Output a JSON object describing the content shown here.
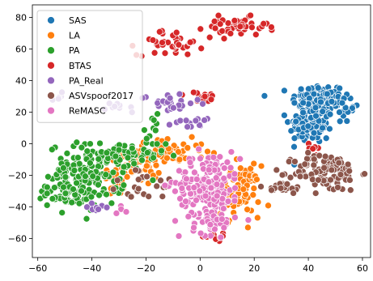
{
  "chart_data": {
    "type": "scatter",
    "title": "",
    "xlabel": "",
    "ylabel": "",
    "xlim": [
      -62,
      63
    ],
    "ylim": [
      -72,
      88
    ],
    "x_ticks": [
      -60,
      -40,
      -20,
      0,
      20,
      40,
      60
    ],
    "y_ticks": [
      -60,
      -40,
      -20,
      0,
      20,
      40,
      60,
      80
    ],
    "x_tick_labels": [
      "−60",
      "−40",
      "−20",
      "0",
      "20",
      "40",
      "60"
    ],
    "y_tick_labels": [
      "−60",
      "−40",
      "−20",
      "0",
      "20",
      "40",
      "60",
      "80"
    ],
    "grid": false,
    "legend_position": "top-left",
    "series": [
      {
        "name": "SAS",
        "color": "#1f77b4",
        "clusters": [
          {
            "cx": 44,
            "cy": 28,
            "sx": 5,
            "sy": 5,
            "n": 120
          },
          {
            "cx": 41,
            "cy": 12,
            "sx": 4,
            "sy": 6,
            "n": 110
          },
          {
            "cx": 53,
            "cy": 22,
            "sx": 2,
            "sy": 4,
            "n": 20
          }
        ]
      },
      {
        "name": "LA",
        "color": "#ff7f0e",
        "clusters": [
          {
            "cx": -14,
            "cy": -5,
            "sx": 8,
            "sy": 4,
            "n": 70
          },
          {
            "cx": -24,
            "cy": -14,
            "sx": 5,
            "sy": 6,
            "n": 40
          },
          {
            "cx": 14,
            "cy": -30,
            "sx": 4,
            "sy": 8,
            "n": 90
          },
          {
            "cx": -30,
            "cy": -25,
            "sx": 3,
            "sy": 4,
            "n": 15
          }
        ]
      },
      {
        "name": "PA",
        "color": "#2ca02c",
        "clusters": [
          {
            "cx": -42,
            "cy": -20,
            "sx": 7,
            "sy": 10,
            "n": 160
          },
          {
            "cx": -49,
            "cy": -32,
            "sx": 4,
            "sy": 3,
            "n": 40
          },
          {
            "cx": -27,
            "cy": -8,
            "sx": 7,
            "sy": 5,
            "n": 50
          },
          {
            "cx": -18,
            "cy": 8,
            "sx": 3,
            "sy": 5,
            "n": 10
          }
        ]
      },
      {
        "name": "BTAS",
        "color": "#d62728",
        "clusters": [
          {
            "cx": -11,
            "cy": 64,
            "sx": 6,
            "sy": 4,
            "n": 40
          },
          {
            "cx": 13,
            "cy": 74,
            "sx": 6,
            "sy": 3,
            "n": 50
          },
          {
            "cx": 1,
            "cy": 29,
            "sx": 3,
            "sy": 2,
            "n": 15
          },
          {
            "cx": 5,
            "cy": -58,
            "sx": 4,
            "sy": 2,
            "n": 10
          },
          {
            "cx": 40,
            "cy": -2,
            "sx": 3,
            "sy": 2,
            "n": 6
          }
        ]
      },
      {
        "name": "PA_Real",
        "color": "#9467bd",
        "clusters": [
          {
            "cx": -12,
            "cy": 26,
            "sx": 5,
            "sy": 3,
            "n": 25
          },
          {
            "cx": -29,
            "cy": 24,
            "sx": 3,
            "sy": 2,
            "n": 10
          },
          {
            "cx": -38,
            "cy": -40,
            "sx": 2,
            "sy": 2,
            "n": 8
          },
          {
            "cx": -4,
            "cy": 15,
            "sx": 3,
            "sy": 3,
            "n": 15
          },
          {
            "cx": -52,
            "cy": 30,
            "sx": 2,
            "sy": 2,
            "n": 6
          }
        ]
      },
      {
        "name": "ASVspoof2017",
        "color": "#8c564b",
        "clusters": [
          {
            "cx": 47,
            "cy": -18,
            "sx": 6,
            "sy": 6,
            "n": 110
          },
          {
            "cx": 29,
            "cy": -28,
            "sx": 5,
            "sy": 2,
            "n": 20
          },
          {
            "cx": -19,
            "cy": -27,
            "sx": 8,
            "sy": 5,
            "n": 20
          }
        ]
      },
      {
        "name": "ReMASC",
        "color": "#e377c2",
        "clusters": [
          {
            "cx": 3,
            "cy": -25,
            "sx": 6,
            "sy": 10,
            "n": 170
          },
          {
            "cx": 5,
            "cy": -50,
            "sx": 4,
            "sy": 4,
            "n": 40
          },
          {
            "cx": -29,
            "cy": -44,
            "sx": 1,
            "sy": 2,
            "n": 4
          }
        ]
      }
    ]
  }
}
